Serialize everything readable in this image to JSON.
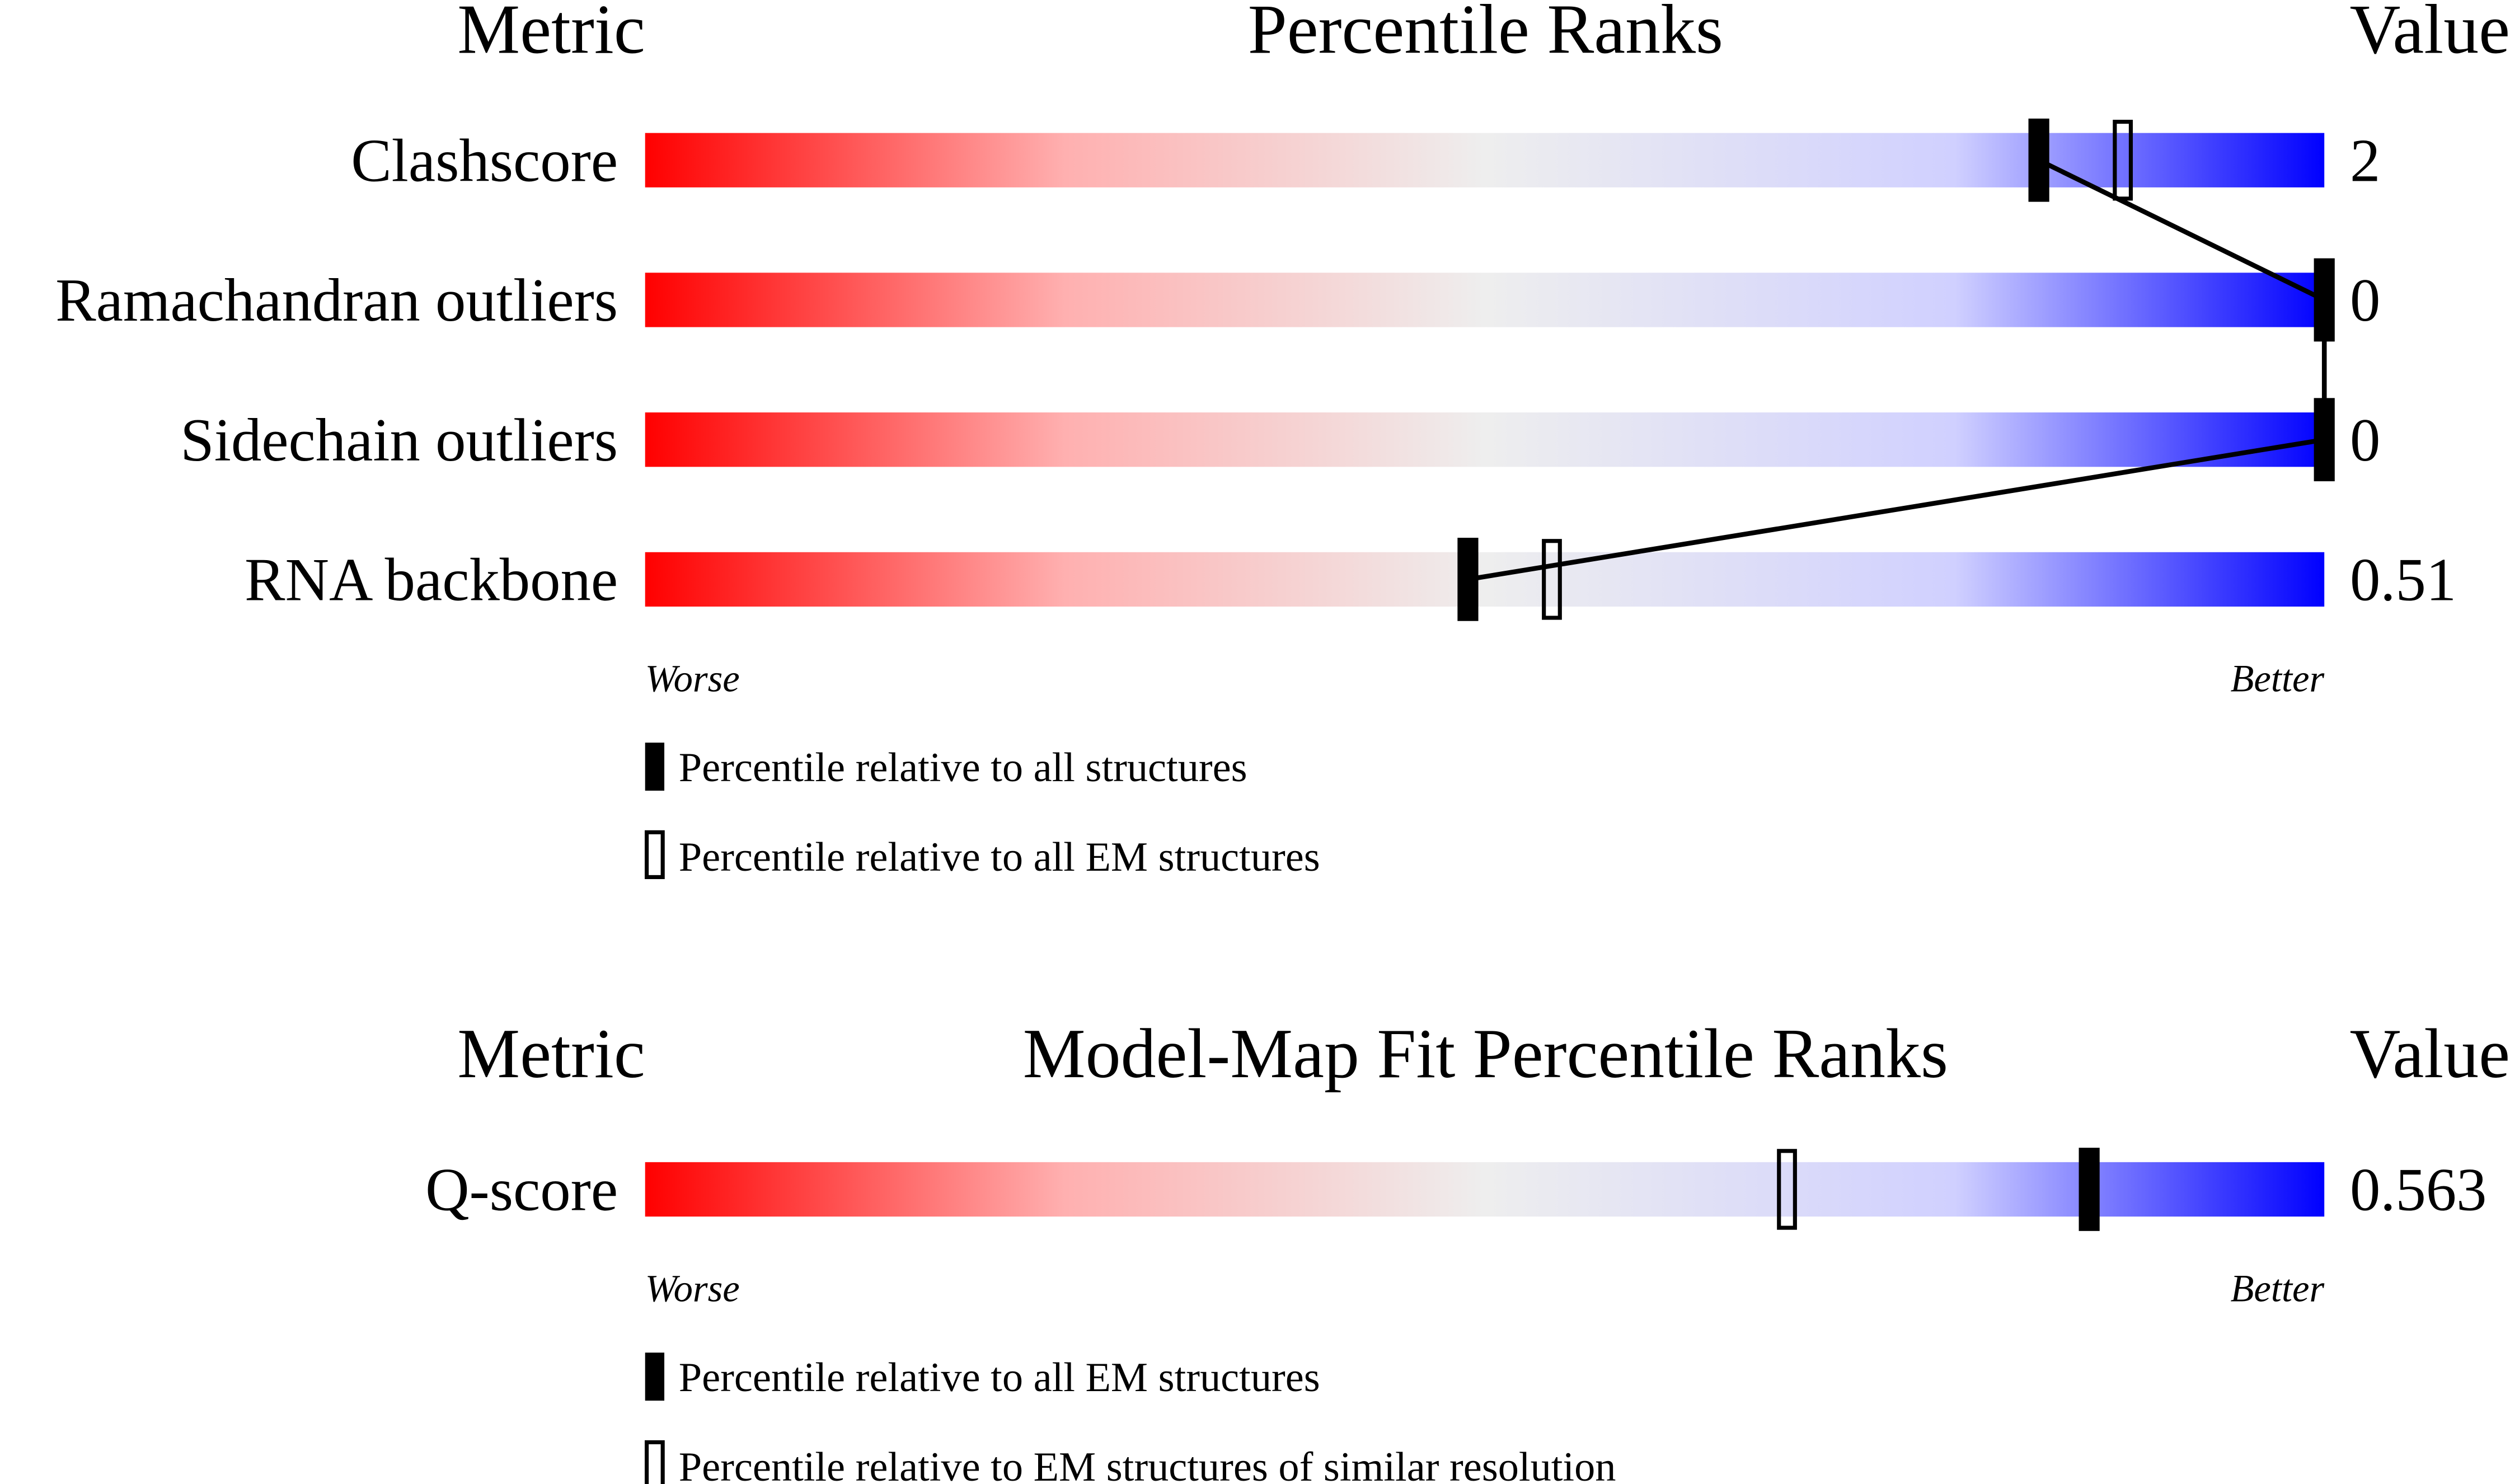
{
  "chart_data": [
    {
      "type": "percentile-slider",
      "header": {
        "metric": "Metric",
        "title": "Percentile Ranks",
        "value": "Value"
      },
      "xlim": [
        0,
        100
      ],
      "scale_labels": {
        "worse": "Worse",
        "better": "Better"
      },
      "rows": [
        {
          "label": "Clashscore",
          "value": "2",
          "percentile_all": 83,
          "percentile_em": 88
        },
        {
          "label": "Ramachandran outliers",
          "value": "0",
          "percentile_all": 100,
          "percentile_em": 100
        },
        {
          "label": "Sidechain outliers",
          "value": "0",
          "percentile_all": 100,
          "percentile_em": 100
        },
        {
          "label": "RNA backbone",
          "value": "0.51",
          "percentile_all": 49,
          "percentile_em": 54
        }
      ],
      "legend": {
        "filled": "Percentile relative to all structures",
        "open": "Percentile relative to all EM structures"
      }
    },
    {
      "type": "percentile-slider",
      "header": {
        "metric": "Metric",
        "title": "Model-Map Fit Percentile Ranks",
        "value": "Value"
      },
      "xlim": [
        0,
        100
      ],
      "scale_labels": {
        "worse": "Worse",
        "better": "Better"
      },
      "rows": [
        {
          "label": "Q-score",
          "value": "0.563",
          "percentile_all": 86,
          "percentile_em": 68
        }
      ],
      "legend": {
        "filled": "Percentile relative to all EM structures",
        "open": "Percentile relative to EM structures of similar resolution"
      }
    }
  ],
  "colors": {
    "worse": "#ff0000",
    "middle": "#eeeeee",
    "better": "#0000ff",
    "marker": "#000000"
  }
}
